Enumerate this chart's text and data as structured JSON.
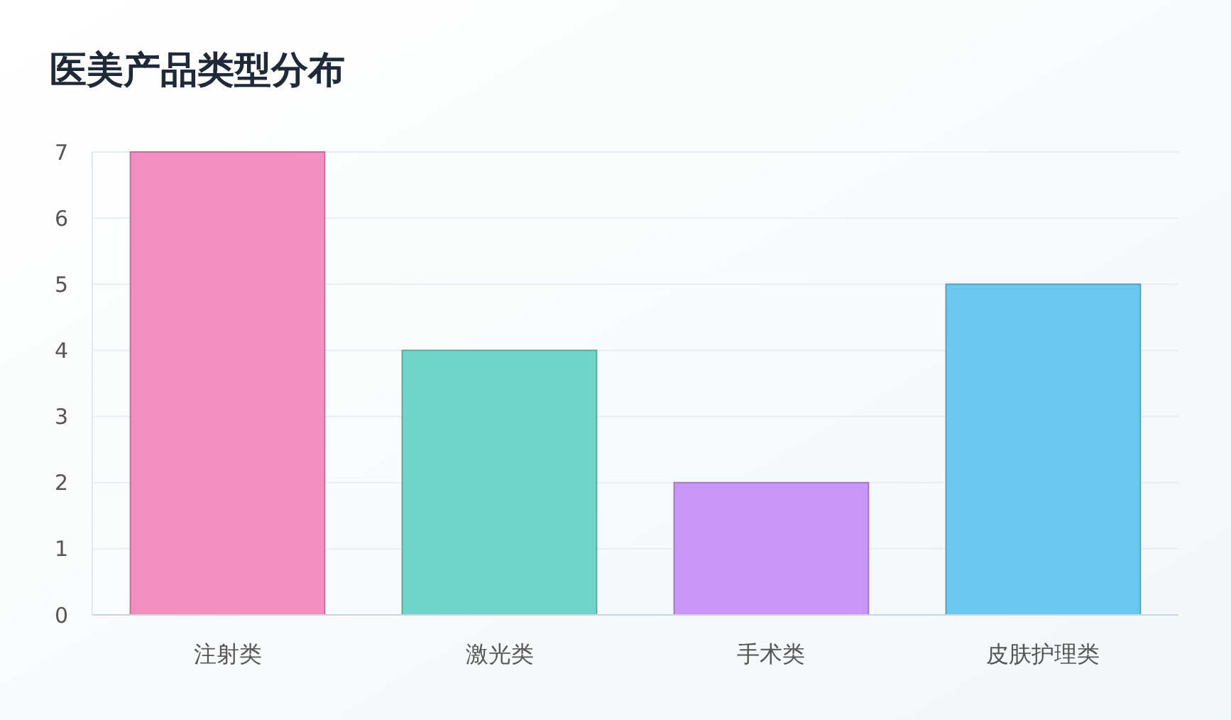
{
  "chart_data": {
    "type": "bar",
    "title": "医美产品类型分布",
    "categories": [
      "注射类",
      "激光类",
      "手术类",
      "皮肤护理类"
    ],
    "values": [
      7,
      4,
      2,
      5
    ],
    "colors": [
      "#f18fc0",
      "#70d4c8",
      "#c997f8",
      "#6cc7ef"
    ],
    "ylim": [
      0,
      7
    ],
    "yticks": [
      0,
      1,
      2,
      3,
      4,
      5,
      6,
      7
    ],
    "grid": "y"
  }
}
